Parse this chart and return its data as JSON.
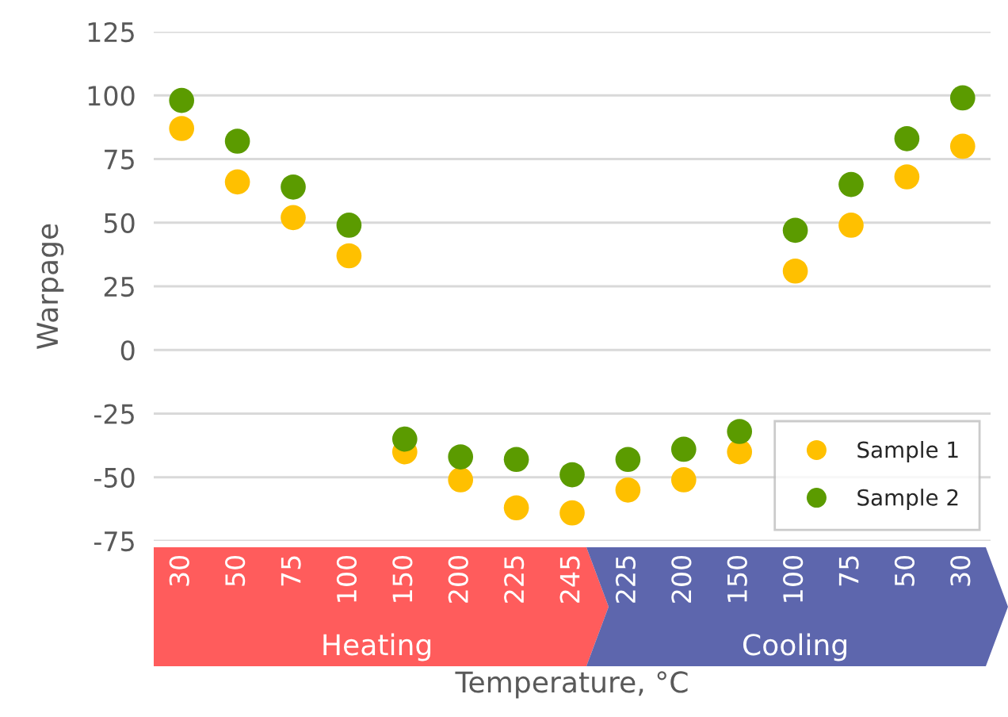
{
  "chart_data": {
    "type": "scatter",
    "xlabel": "Temperature, °C",
    "ylabel": "Warpage",
    "categories": [
      "30",
      "50",
      "75",
      "100",
      "150",
      "200",
      "225",
      "245",
      "225",
      "200",
      "150",
      "100",
      "75",
      "50",
      "30"
    ],
    "series": [
      {
        "name": "Sample 1",
        "color": "#ffc000",
        "values": [
          87,
          66,
          52,
          37,
          -40,
          -51,
          -62,
          -64,
          -55,
          -51,
          -40,
          31,
          49,
          68,
          80
        ]
      },
      {
        "name": "Sample 2",
        "color": "#5b9b00",
        "values": [
          98,
          82,
          64,
          49,
          -35,
          -42,
          -43,
          -49,
          -43,
          -39,
          -32,
          47,
          65,
          83,
          99
        ]
      }
    ],
    "ylim": [
      -75,
      125
    ],
    "yticks": [
      -75,
      -50,
      -25,
      0,
      25,
      50,
      75,
      100,
      125
    ],
    "grid": "y",
    "legend": "bottom right",
    "marker": "circle",
    "annotations": [
      "Heating",
      "Cooling"
    ]
  }
}
